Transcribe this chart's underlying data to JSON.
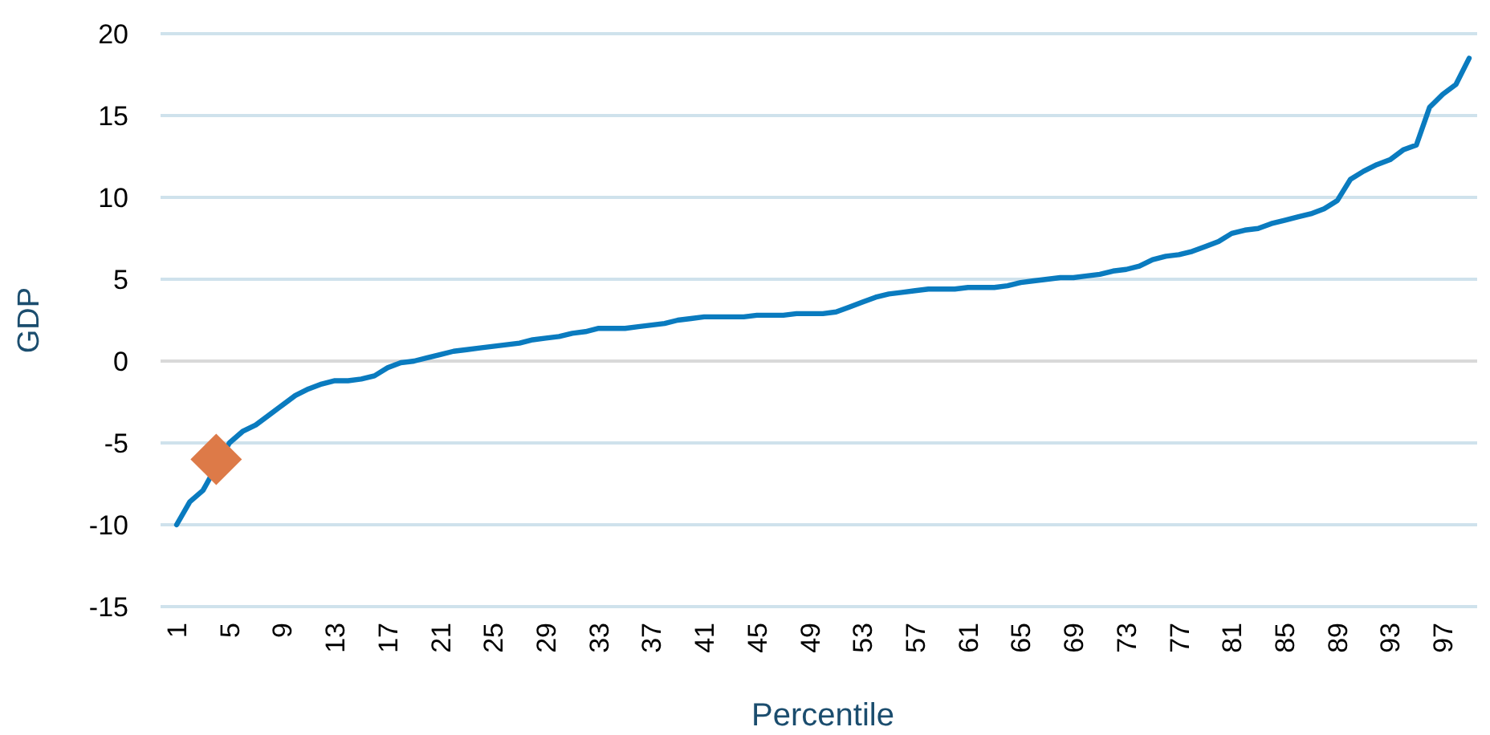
{
  "chart_data": {
    "type": "line",
    "xlabel": "Percentile",
    "ylabel": "GDP",
    "categories": [
      "1",
      null,
      null,
      null,
      "5",
      null,
      null,
      null,
      "9",
      null,
      null,
      null,
      "13",
      null,
      null,
      null,
      "17",
      null,
      null,
      null,
      "21",
      null,
      null,
      null,
      "25",
      null,
      null,
      null,
      "29",
      null,
      null,
      null,
      "33",
      null,
      null,
      null,
      "37",
      null,
      null,
      null,
      "41",
      null,
      null,
      null,
      "45",
      null,
      null,
      null,
      "49",
      null,
      null,
      null,
      "53",
      null,
      null,
      null,
      "57",
      null,
      null,
      null,
      "61",
      null,
      null,
      null,
      "65",
      null,
      null,
      null,
      "69",
      null,
      null,
      null,
      "73",
      null,
      null,
      null,
      "77",
      null,
      null,
      null,
      "81",
      null,
      null,
      null,
      "85",
      null,
      null,
      null,
      "89",
      null,
      null,
      null,
      "93",
      null,
      null,
      null,
      "97",
      null,
      null
    ],
    "series": [
      {
        "color": "#0a7bbf",
        "values": [
          -10.0,
          -8.6,
          -7.9,
          null,
          -5.0,
          -4.3,
          -3.9,
          -3.3,
          -2.7,
          -2.1,
          -1.7,
          -1.4,
          -1.2,
          -1.2,
          -1.1,
          -0.9,
          -0.4,
          -0.1,
          0.0,
          0.2,
          0.4,
          0.6,
          0.7,
          0.8,
          0.9,
          1.0,
          1.1,
          1.3,
          1.4,
          1.5,
          1.7,
          1.8,
          2.0,
          2.0,
          2.0,
          2.1,
          2.2,
          2.3,
          2.5,
          2.6,
          2.7,
          2.7,
          2.7,
          2.7,
          2.8,
          2.8,
          2.8,
          2.9,
          2.9,
          2.9,
          3.0,
          3.3,
          3.6,
          3.9,
          4.1,
          4.2,
          4.3,
          4.4,
          4.4,
          4.4,
          4.5,
          4.5,
          4.5,
          4.6,
          4.8,
          4.9,
          5.0,
          5.1,
          5.1,
          5.2,
          5.3,
          5.5,
          5.6,
          5.8,
          6.2,
          6.4,
          6.5,
          6.7,
          7.0,
          7.3,
          7.8,
          8.0,
          8.1,
          8.4,
          8.6,
          8.8,
          9.0,
          9.3,
          9.8,
          11.1,
          11.6,
          12.0,
          12.3,
          12.9,
          13.2,
          15.5,
          16.3,
          16.9,
          18.5
        ]
      },
      {
        "type": "scatter",
        "color": "#dd7a48",
        "marker": "diamond",
        "values": [
          null,
          null,
          null,
          -6,
          null,
          null,
          null,
          null,
          null,
          null,
          null,
          null,
          null,
          null,
          null,
          null,
          null,
          null,
          null,
          null,
          null,
          null,
          null,
          null,
          null,
          null,
          null,
          null,
          null,
          null,
          null,
          null,
          null,
          null,
          null,
          null,
          null,
          null,
          null,
          null,
          null,
          null,
          null,
          null,
          null,
          null,
          null,
          null,
          null,
          null,
          null,
          null,
          null,
          null,
          null,
          null,
          null,
          null,
          null,
          null,
          null,
          null,
          null,
          null,
          null,
          null,
          null,
          null,
          null,
          null,
          null,
          null,
          null,
          null,
          null,
          null,
          null,
          null,
          null,
          null,
          null,
          null,
          null,
          null,
          null,
          null,
          null,
          null,
          null,
          null,
          null,
          null,
          null,
          null,
          null,
          null,
          null,
          null,
          null
        ]
      }
    ],
    "ylim": [
      -15,
      20
    ],
    "yticks": [
      -15,
      -10,
      -5,
      0,
      5,
      10,
      15,
      20
    ],
    "grid": "y"
  }
}
